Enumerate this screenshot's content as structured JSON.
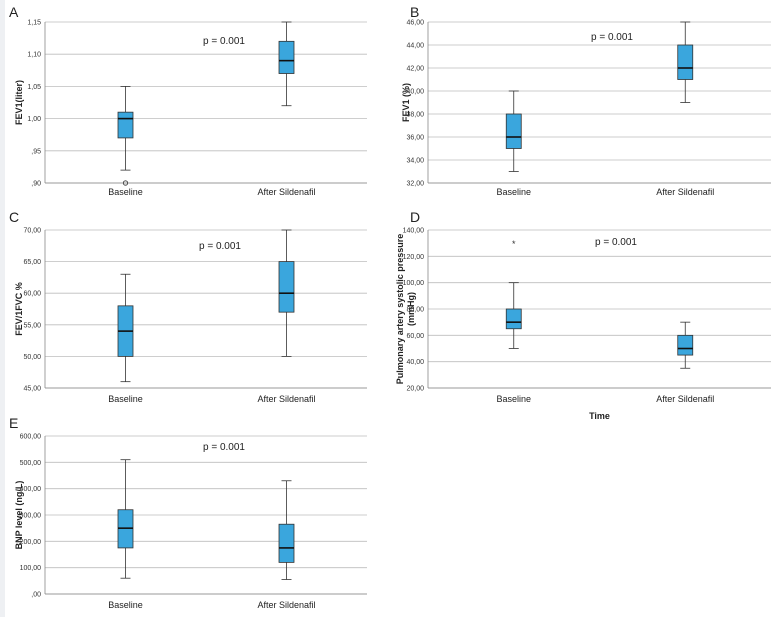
{
  "chart_data": [
    {
      "type": "boxplot",
      "panel": "A",
      "ylabel": "FEV1(liter)",
      "xlabel": "",
      "annotation": "p = 0.001",
      "ylim": [
        0.9,
        1.15
      ],
      "yticks": [
        0.9,
        0.95,
        1.0,
        1.05,
        1.1,
        1.15
      ],
      "ytick_labels": [
        ",90",
        ",95",
        "1,00",
        "1,05",
        "1,10",
        "1,15"
      ],
      "categories": [
        "Baseline",
        "After Sildenafil"
      ],
      "boxes": [
        {
          "min": 0.92,
          "q1": 0.97,
          "median": 1.0,
          "q3": 1.01,
          "max": 1.05,
          "outliers": [
            0.9
          ]
        },
        {
          "min": 1.02,
          "q1": 1.07,
          "median": 1.09,
          "q3": 1.12,
          "max": 1.15,
          "outliers": []
        }
      ]
    },
    {
      "type": "boxplot",
      "panel": "B",
      "ylabel": "FEV1 (%)",
      "xlabel": "",
      "annotation": "p = 0.001",
      "ylim": [
        32,
        46
      ],
      "yticks": [
        32,
        34,
        36,
        38,
        40,
        42,
        44,
        46
      ],
      "ytick_labels": [
        "32,00",
        "34,00",
        "36,00",
        "38,00",
        "40,00",
        "42,00",
        "44,00",
        "46,00"
      ],
      "categories": [
        "Baseline",
        "After Sildenafil"
      ],
      "boxes": [
        {
          "min": 33,
          "q1": 35,
          "median": 36,
          "q3": 38,
          "max": 40,
          "outliers": []
        },
        {
          "min": 39,
          "q1": 41,
          "median": 42,
          "q3": 44,
          "max": 46,
          "outliers": []
        }
      ]
    },
    {
      "type": "boxplot",
      "panel": "C",
      "ylabel": "FEV/1FVC %",
      "xlabel": "",
      "annotation": "p = 0.001",
      "ylim": [
        45,
        70
      ],
      "yticks": [
        45,
        50,
        55,
        60,
        65,
        70
      ],
      "ytick_labels": [
        "45,00",
        "50,00",
        "55,00",
        "60,00",
        "65,00",
        "70,00"
      ],
      "categories": [
        "Baseline",
        "After Sildenafil"
      ],
      "boxes": [
        {
          "min": 46,
          "q1": 50,
          "median": 54,
          "q3": 58,
          "max": 63,
          "outliers": []
        },
        {
          "min": 50,
          "q1": 57,
          "median": 60,
          "q3": 65,
          "max": 70,
          "outliers": []
        }
      ]
    },
    {
      "type": "boxplot",
      "panel": "D",
      "ylabel": "Pulmonary artery systolic pressure (mmHg)",
      "ylabel_lines": [
        "Pulmonary artery systolic pressure",
        "(mmHg)"
      ],
      "xlabel": "Time",
      "annotation": "p = 0.001",
      "ylim": [
        20,
        140
      ],
      "yticks": [
        20,
        40,
        60,
        80,
        100,
        120,
        140
      ],
      "ytick_labels": [
        "20,00",
        "40,00",
        "60,00",
        "80,00",
        "100,00",
        "120,00",
        "140,00"
      ],
      "categories": [
        "Baseline",
        "After Sildenafil"
      ],
      "boxes": [
        {
          "min": 50,
          "q1": 65,
          "median": 70,
          "q3": 80,
          "max": 100,
          "outliers": [],
          "extremes": [
            130
          ]
        },
        {
          "min": 35,
          "q1": 45,
          "median": 50,
          "q3": 60,
          "max": 70,
          "outliers": []
        }
      ]
    },
    {
      "type": "boxplot",
      "panel": "E",
      "ylabel": "BNP level (ng/L)",
      "xlabel": "",
      "annotation": "p = 0.001",
      "ylim": [
        0,
        600
      ],
      "yticks": [
        0,
        100,
        200,
        300,
        400,
        500,
        600
      ],
      "ytick_labels": [
        ",00",
        "100,00",
        "200,00",
        "300,00",
        "400,00",
        "500,00",
        "600,00"
      ],
      "categories": [
        "Baseline",
        "After Sildenafil"
      ],
      "boxes": [
        {
          "min": 60,
          "q1": 175,
          "median": 250,
          "q3": 320,
          "max": 510,
          "outliers": []
        },
        {
          "min": 55,
          "q1": 120,
          "median": 175,
          "q3": 265,
          "max": 430,
          "outliers": []
        }
      ]
    }
  ],
  "colors": {
    "box_fill": "#3aa6dd",
    "grid": "#bdbdbd",
    "background": "#ffffff"
  },
  "extreme_marker": "*"
}
